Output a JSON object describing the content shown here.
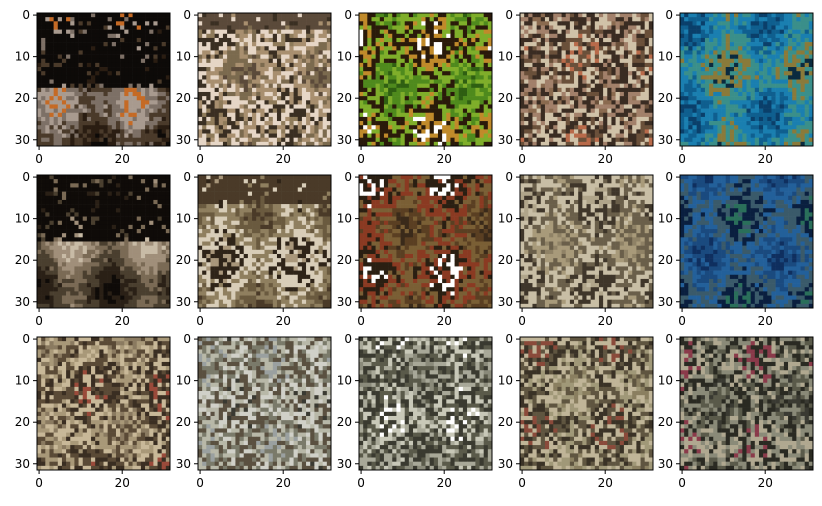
{
  "figure": {
    "rows": 3,
    "cols": 5,
    "background": "#ffffff",
    "axis_color": "#000000"
  },
  "chart_data": {
    "type": "image_grid",
    "title": "",
    "xlabel": "",
    "ylabel": "",
    "image_size": [
      32,
      32
    ],
    "xlim": [
      0,
      31
    ],
    "ylim": [
      31,
      0
    ],
    "xticks": [
      0,
      20
    ],
    "yticks": [
      0,
      10,
      20,
      30
    ],
    "grid": false,
    "legend": "none",
    "panels": [
      {
        "row": 0,
        "col": 0,
        "palette": [
          "#0d0a08",
          "#2a1d12",
          "#4a3a2a",
          "#7d7066",
          "#a89a8f",
          "#c56a25"
        ],
        "dark_top": 0.55,
        "noise": 0.35
      },
      {
        "row": 0,
        "col": 1,
        "palette": [
          "#5b4a3a",
          "#7b6a4e",
          "#a88f6f",
          "#e6d6c6",
          "#3a2f22",
          "#8f7b5a"
        ],
        "dark_top": 0.1,
        "noise": 0.5
      },
      {
        "row": 0,
        "col": 2,
        "palette": [
          "#2f5f12",
          "#4f8a1d",
          "#7fae2a",
          "#2a1a0a",
          "#c08a2a",
          "#ffffff"
        ],
        "dark_top": 0.0,
        "noise": 0.45
      },
      {
        "row": 0,
        "col": 3,
        "palette": [
          "#8a6a4f",
          "#a2806a",
          "#3a2c22",
          "#d0c2a8",
          "#6a503a",
          "#b86a4a"
        ],
        "dark_top": 0.0,
        "noise": 0.55
      },
      {
        "row": 0,
        "col": 4,
        "palette": [
          "#0a3f6a",
          "#0f5f8f",
          "#1a7fb0",
          "#3a8f8a",
          "#8a7a3a",
          "#0a2a3f"
        ],
        "dark_top": 0.0,
        "noise": 0.35
      },
      {
        "row": 1,
        "col": 0,
        "palette": [
          "#0f0b08",
          "#2a2016",
          "#4a3f2f",
          "#7a6a55",
          "#a08f7a",
          "#c8bba6"
        ],
        "dark_top": 0.5,
        "noise": 0.25
      },
      {
        "row": 1,
        "col": 1,
        "palette": [
          "#4a3a28",
          "#6a5a3f",
          "#8f7f5f",
          "#d8cdb8",
          "#2f2418",
          "#a8967a"
        ],
        "dark_top": 0.2,
        "noise": 0.35
      },
      {
        "row": 1,
        "col": 2,
        "palette": [
          "#3a2a1a",
          "#5a3f22",
          "#7a5f35",
          "#8a3a22",
          "#2a1f12",
          "#ffffff"
        ],
        "dark_top": 0.0,
        "noise": 0.4
      },
      {
        "row": 1,
        "col": 3,
        "palette": [
          "#8f8266",
          "#a89a7a",
          "#6a5f4a",
          "#c8bea5",
          "#3f362a",
          "#b0a58a"
        ],
        "dark_top": 0.0,
        "noise": 0.4
      },
      {
        "row": 1,
        "col": 4,
        "palette": [
          "#0f2f5f",
          "#1a4a7f",
          "#23609a",
          "#3a5a6a",
          "#0a1f3f",
          "#2a6f5a"
        ],
        "dark_top": 0.0,
        "noise": 0.35
      },
      {
        "row": 2,
        "col": 0,
        "palette": [
          "#8a7a60",
          "#a89878",
          "#5a4a36",
          "#c8b898",
          "#3a2e22",
          "#9a4a3a"
        ],
        "dark_top": 0.0,
        "noise": 0.6
      },
      {
        "row": 2,
        "col": 1,
        "palette": [
          "#9aa0a0",
          "#7a7a6a",
          "#b8b8a8",
          "#5a5040",
          "#d0d0c8",
          "#3a3a32"
        ],
        "dark_top": 0.0,
        "noise": 0.6
      },
      {
        "row": 2,
        "col": 2,
        "palette": [
          "#8a8a7a",
          "#a8a898",
          "#5a5a4a",
          "#3a3a30",
          "#c8c8b8",
          "#ffffff"
        ],
        "dark_top": 0.0,
        "noise": 0.6
      },
      {
        "row": 2,
        "col": 3,
        "palette": [
          "#8a7f60",
          "#a09878",
          "#5f5540",
          "#c0b598",
          "#3a3226",
          "#8a4a3a"
        ],
        "dark_top": 0.0,
        "noise": 0.6
      },
      {
        "row": 2,
        "col": 4,
        "palette": [
          "#3a3a32",
          "#5a5a4a",
          "#8a8a78",
          "#2a2a22",
          "#b0a890",
          "#8a3a4a"
        ],
        "dark_top": 0.0,
        "noise": 0.6
      }
    ]
  }
}
